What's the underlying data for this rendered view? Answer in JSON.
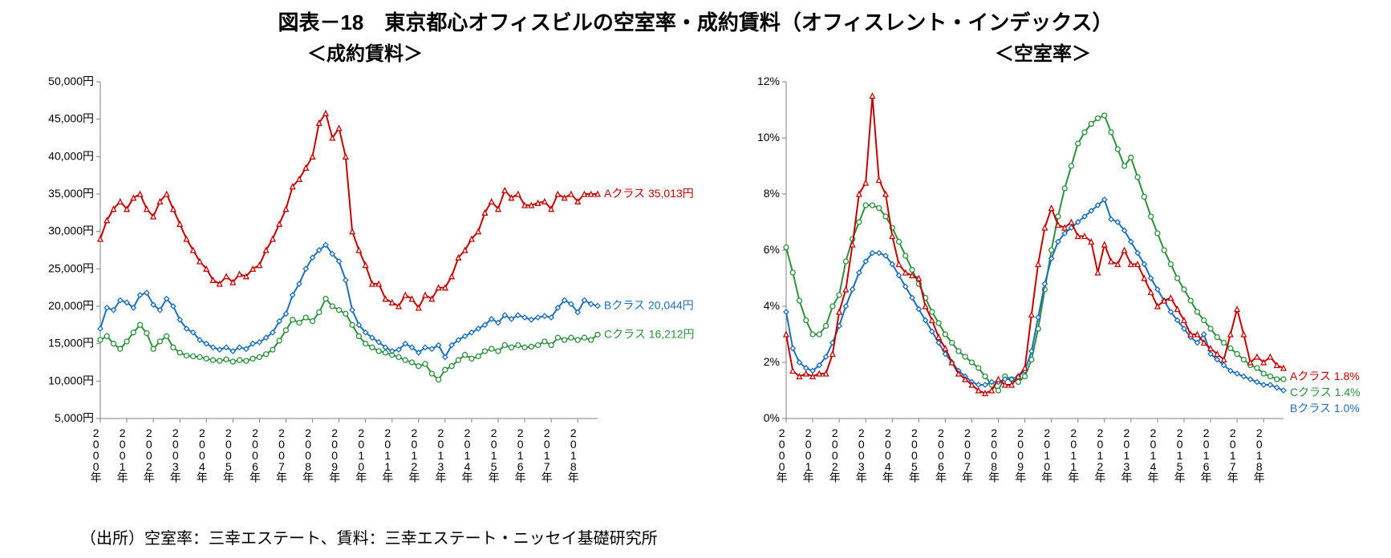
{
  "title": "図表－18　東京都心オフィスビルの空室率・成約賃料（オフィスレント・インデックス）",
  "leftSubtitle": "＜成約賃料＞",
  "rightSubtitle": "＜空室率＞",
  "footnote": "（出所）空室率：三幸エステート、賃料：三幸エステート・ニッセイ基礎研究所",
  "colors": {
    "bg": "#ffffff",
    "axis": "#808080",
    "a": "#c00000",
    "b": "#1f6fb4",
    "c": "#2f8f3f"
  },
  "rentChart": {
    "type": "line",
    "ylim": [
      5000,
      50000
    ],
    "ytickStep": 5000,
    "yFormat": "yen-comma",
    "xYears": [
      2000,
      2001,
      2002,
      2003,
      2004,
      2005,
      2006,
      2007,
      2008,
      2009,
      2010,
      2011,
      2012,
      2013,
      2014,
      2015,
      2016,
      2017,
      2018
    ],
    "xLabelSuffix": "年",
    "quartersPerYear": 4,
    "lineWidth": 2,
    "markerSize": 3,
    "labels": {
      "a": "Aクラス 35,013円",
      "b": "Bクラス 20,044円",
      "c": "Cクラス 16,212円"
    },
    "markerShapes": {
      "a": "triangle",
      "b": "diamond",
      "c": "circle"
    },
    "series": {
      "a": [
        29000,
        31500,
        33000,
        34000,
        33000,
        34500,
        35000,
        33000,
        32000,
        34000,
        35000,
        33000,
        31000,
        29000,
        27500,
        26000,
        25000,
        23500,
        23000,
        24000,
        23200,
        24300,
        24000,
        25000,
        25500,
        27500,
        29000,
        31000,
        33000,
        36000,
        37000,
        38500,
        40000,
        44500,
        45800,
        42500,
        43800,
        40000,
        30000,
        27500,
        25500,
        23000,
        23000,
        21000,
        20500,
        20000,
        21500,
        21000,
        19800,
        21500,
        21000,
        22500,
        22500,
        24000,
        26500,
        27500,
        29000,
        30000,
        32500,
        34000,
        33000,
        35500,
        34500,
        35000,
        33500,
        33500,
        33800,
        34000,
        33000,
        35000,
        34500,
        35000,
        34000,
        35000,
        35000,
        35013
      ],
      "b": [
        17000,
        19800,
        19500,
        20800,
        20500,
        19800,
        21500,
        21800,
        20200,
        19500,
        21000,
        20000,
        18200,
        17000,
        16500,
        15500,
        15000,
        14500,
        14200,
        14500,
        14000,
        14500,
        14300,
        15000,
        15200,
        15800,
        16500,
        18000,
        19000,
        21500,
        23000,
        25000,
        26500,
        27500,
        28200,
        27000,
        26000,
        23500,
        19500,
        17500,
        16500,
        15800,
        15200,
        14500,
        14000,
        14200,
        15000,
        14500,
        13800,
        14500,
        14300,
        14800,
        13200,
        14800,
        15500,
        16000,
        16500,
        17000,
        17500,
        18300,
        17800,
        18800,
        18300,
        18800,
        18500,
        18200,
        18500,
        18700,
        18500,
        19800,
        20800,
        20300,
        19200,
        20800,
        20300,
        20044
      ],
      "c": [
        15500,
        16000,
        15000,
        14300,
        15300,
        16500,
        17500,
        16400,
        14300,
        15300,
        16000,
        14500,
        13800,
        13400,
        13300,
        13200,
        13000,
        12800,
        12700,
        12900,
        12600,
        12800,
        12700,
        13000,
        13200,
        13600,
        14200,
        15400,
        16800,
        18200,
        17800,
        18500,
        18000,
        19200,
        21000,
        20000,
        19500,
        19000,
        17500,
        16000,
        15000,
        14500,
        14000,
        13800,
        13500,
        13200,
        12800,
        12500,
        12000,
        12300,
        11000,
        10200,
        11500,
        12000,
        12800,
        13500,
        13000,
        13300,
        14000,
        14300,
        14000,
        14800,
        14500,
        14800,
        14500,
        14600,
        14800,
        15300,
        14800,
        15800,
        15500,
        15800,
        15500,
        15800,
        15500,
        16212
      ]
    }
  },
  "vacancyChart": {
    "type": "line",
    "ylim": [
      0,
      12
    ],
    "ytickStep": 2,
    "yFormat": "percent",
    "xYears": [
      2000,
      2001,
      2002,
      2003,
      2004,
      2005,
      2006,
      2007,
      2008,
      2009,
      2010,
      2011,
      2012,
      2013,
      2014,
      2015,
      2016,
      2017,
      2018
    ],
    "xLabelSuffix": "年",
    "quartersPerYear": 4,
    "lineWidth": 2,
    "markerSize": 3,
    "markerShapes": {
      "a": "triangle",
      "b": "diamond",
      "c": "circle"
    },
    "labels": {
      "a": "Aクラス 1.8%",
      "b": "Bクラス 1.0%",
      "c": "Cクラス 1.4%"
    },
    "series": {
      "a": [
        3.0,
        1.7,
        1.5,
        1.6,
        1.5,
        1.6,
        1.6,
        2.3,
        3.8,
        4.6,
        6.2,
        8.0,
        8.4,
        11.5,
        8.5,
        8.0,
        6.5,
        5.5,
        5.2,
        5.1,
        5.0,
        4.0,
        3.5,
        2.9,
        2.5,
        2.0,
        1.6,
        1.4,
        1.2,
        1.0,
        0.9,
        1.0,
        1.4,
        1.2,
        1.2,
        1.5,
        1.8,
        3.7,
        5.5,
        6.8,
        7.5,
        6.9,
        6.8,
        7.0,
        6.5,
        6.5,
        6.3,
        5.2,
        6.2,
        5.6,
        5.5,
        6.0,
        5.5,
        5.5,
        5.0,
        4.5,
        4.0,
        4.2,
        4.3,
        3.9,
        3.5,
        3.0,
        3.0,
        2.7,
        2.5,
        2.3,
        2.1,
        3.0,
        3.9,
        3.0,
        2.0,
        2.2,
        2.0,
        2.2,
        1.9,
        1.8
      ],
      "b": [
        3.8,
        2.5,
        2.0,
        1.8,
        1.7,
        1.9,
        2.2,
        2.7,
        3.3,
        4.0,
        4.6,
        5.2,
        5.6,
        5.9,
        5.9,
        5.8,
        5.5,
        5.1,
        4.7,
        4.3,
        3.9,
        3.5,
        3.1,
        2.7,
        2.3,
        2.0,
        1.7,
        1.5,
        1.3,
        1.2,
        1.2,
        1.3,
        1.3,
        1.4,
        1.4,
        1.5,
        1.7,
        2.4,
        3.6,
        4.8,
        5.7,
        6.3,
        6.6,
        6.8,
        7.0,
        7.2,
        7.4,
        7.6,
        7.8,
        7.1,
        7.0,
        6.7,
        6.3,
        5.9,
        5.5,
        5.0,
        4.6,
        4.2,
        3.8,
        3.5,
        3.2,
        2.9,
        2.7,
        3.0,
        2.3,
        2.1,
        1.9,
        1.7,
        1.6,
        1.5,
        1.4,
        1.3,
        1.2,
        1.2,
        1.1,
        1.0
      ],
      "c": [
        6.1,
        5.2,
        4.2,
        3.5,
        3.0,
        3.0,
        3.3,
        4.0,
        4.4,
        5.6,
        6.4,
        7.0,
        7.6,
        7.6,
        7.5,
        7.2,
        6.8,
        6.3,
        5.8,
        5.3,
        4.8,
        4.3,
        3.8,
        3.4,
        3.0,
        2.7,
        2.4,
        2.2,
        2.0,
        1.8,
        1.5,
        1.2,
        1.0,
        1.5,
        1.4,
        1.3,
        1.5,
        2.1,
        3.2,
        4.6,
        6.0,
        7.2,
        8.2,
        9.0,
        9.8,
        10.2,
        10.5,
        10.7,
        10.8,
        10.2,
        9.6,
        9.0,
        9.3,
        8.6,
        7.9,
        7.2,
        6.6,
        6.0,
        5.5,
        5.0,
        4.6,
        4.2,
        3.8,
        3.5,
        3.2,
        2.9,
        2.7,
        2.5,
        2.3,
        2.1,
        1.9,
        1.8,
        1.6,
        1.5,
        1.4,
        1.4
      ]
    }
  }
}
